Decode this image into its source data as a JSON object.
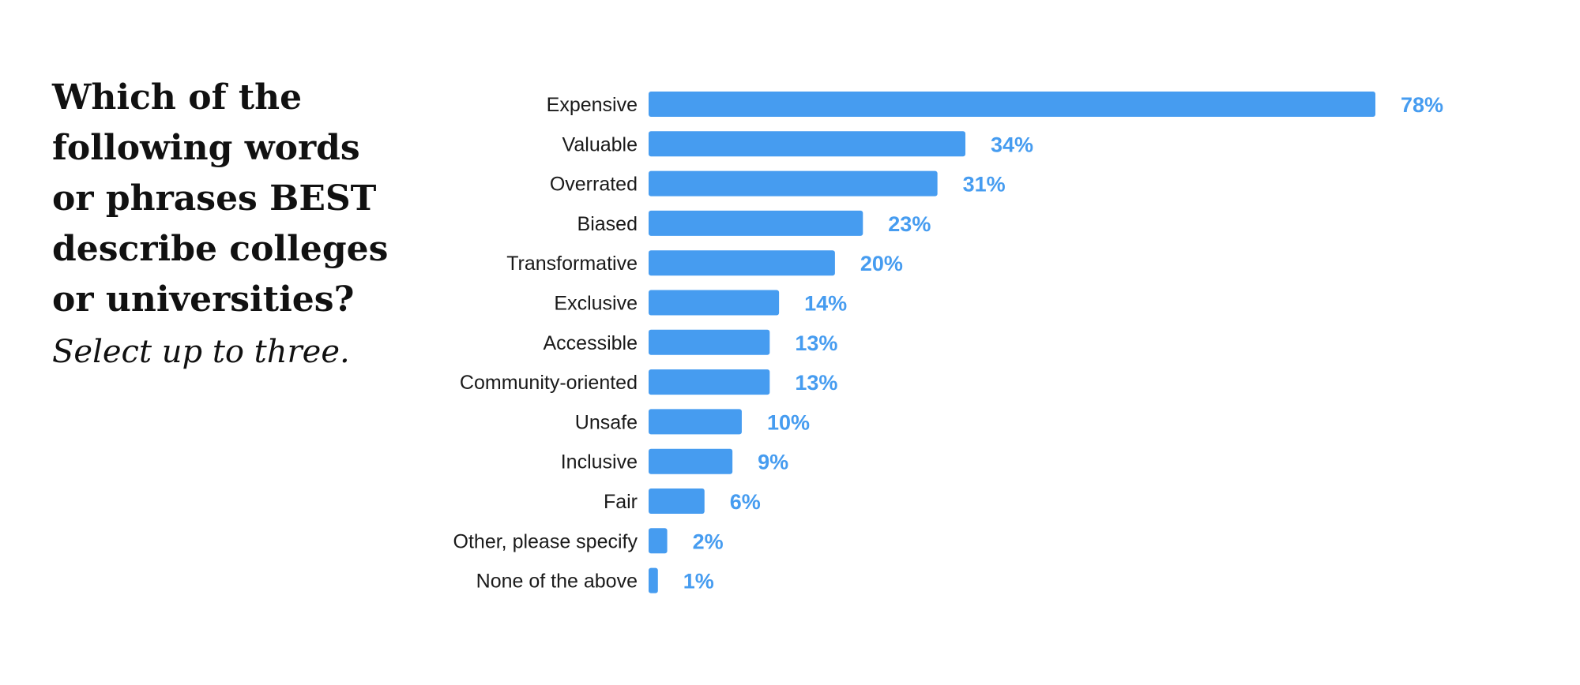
{
  "question": "Which of the following words or phrases BEST describe colleges or universities?",
  "instruction": "Select up to three.",
  "colors": {
    "bar": "#469cf0",
    "value_label": "#469cf0"
  },
  "chart_data": {
    "type": "bar",
    "orientation": "horizontal",
    "categories": [
      "Expensive",
      "Valuable",
      "Overrated",
      "Biased",
      "Transformative",
      "Exclusive",
      "Accessible",
      "Community-oriented",
      "Unsafe",
      "Inclusive",
      "Fair",
      "Other, please specify",
      "None of the above"
    ],
    "values": [
      78,
      34,
      31,
      23,
      20,
      14,
      13,
      13,
      10,
      9,
      6,
      2,
      1
    ],
    "value_labels": [
      "78%",
      "34%",
      "31%",
      "23%",
      "20%",
      "14%",
      "13%",
      "13%",
      "10%",
      "9%",
      "6%",
      "2%",
      "1%"
    ],
    "unit": "%",
    "xlim": [
      0,
      100
    ],
    "grid": false,
    "legend": "none"
  }
}
